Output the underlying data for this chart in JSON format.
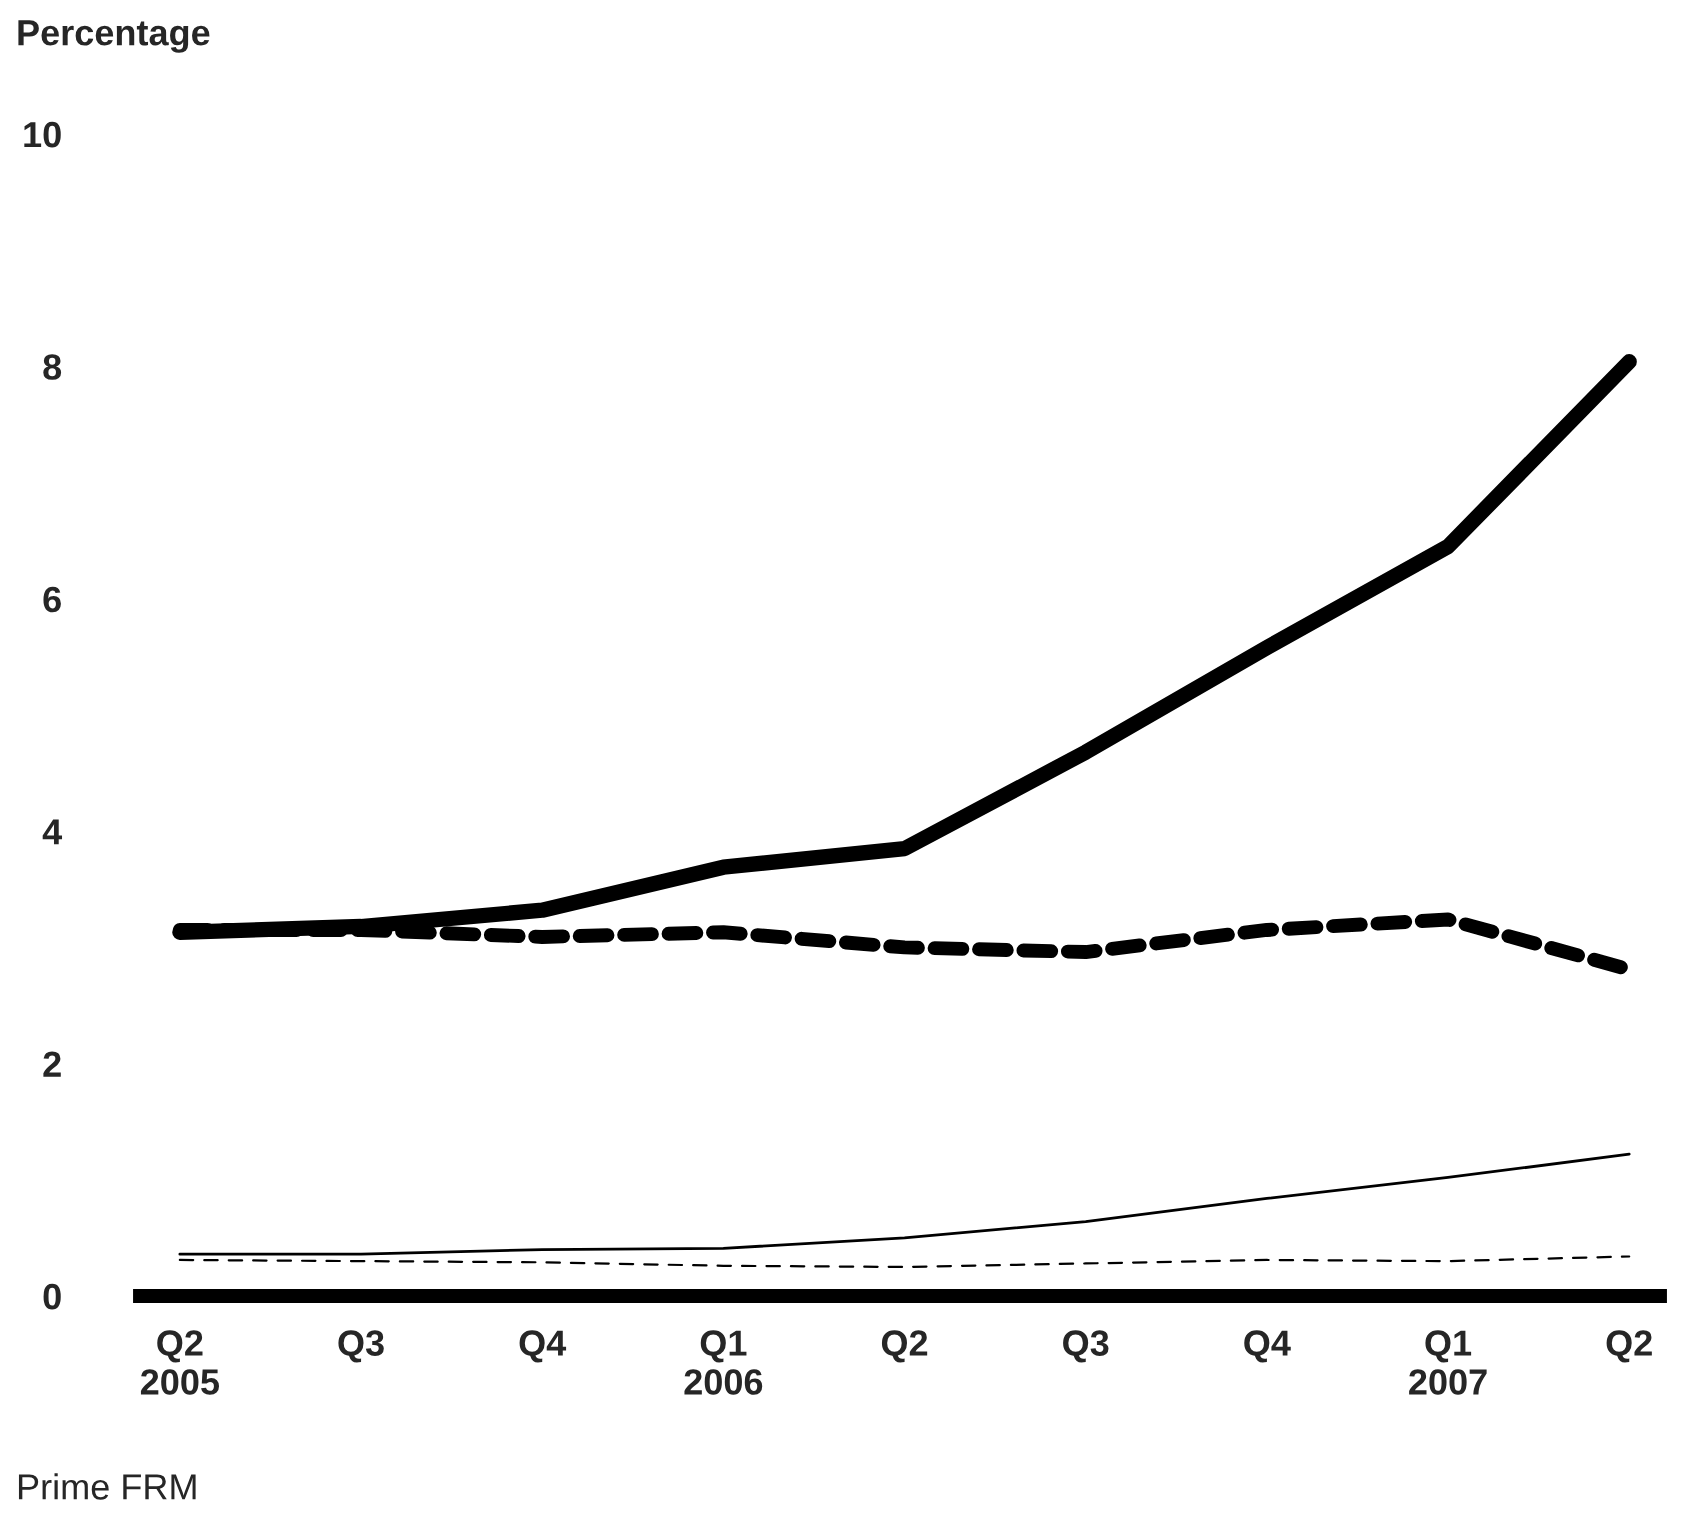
{
  "chart_data": {
    "type": "line",
    "ylabel": "Percentage",
    "categories": [
      "Q2\n2005",
      "Q3",
      "Q4",
      "Q1\n2006",
      "Q2",
      "Q3",
      "Q4",
      "Q1\n2007",
      "Q2"
    ],
    "series": [
      {
        "color": "#000000",
        "line_style": "solid",
        "values": [
          3.13,
          3.18,
          3.32,
          3.69,
          3.85,
          4.68,
          5.58,
          6.45,
          8.04
        ]
      },
      {
        "color": "#000000",
        "line_style": "dashed",
        "values": [
          3.15,
          3.15,
          3.09,
          3.13,
          3.0,
          2.96,
          3.15,
          3.24,
          2.81
        ]
      },
      {
        "color": "#000000",
        "line_style": "solid",
        "values": [
          0.36,
          0.36,
          0.4,
          0.41,
          0.5,
          0.64,
          0.84,
          1.02,
          1.22
        ]
      },
      {
        "color": "#000000",
        "line_style": "dashed",
        "values": [
          0.31,
          0.3,
          0.29,
          0.26,
          0.25,
          0.28,
          0.31,
          0.3,
          0.34
        ]
      }
    ],
    "ylim": [
      0,
      10
    ],
    "yticks": [
      0,
      2,
      4,
      6,
      8,
      10
    ],
    "grid": false,
    "legend": false,
    "marker": "none",
    "annotations": [
      "Prime FRM"
    ]
  }
}
